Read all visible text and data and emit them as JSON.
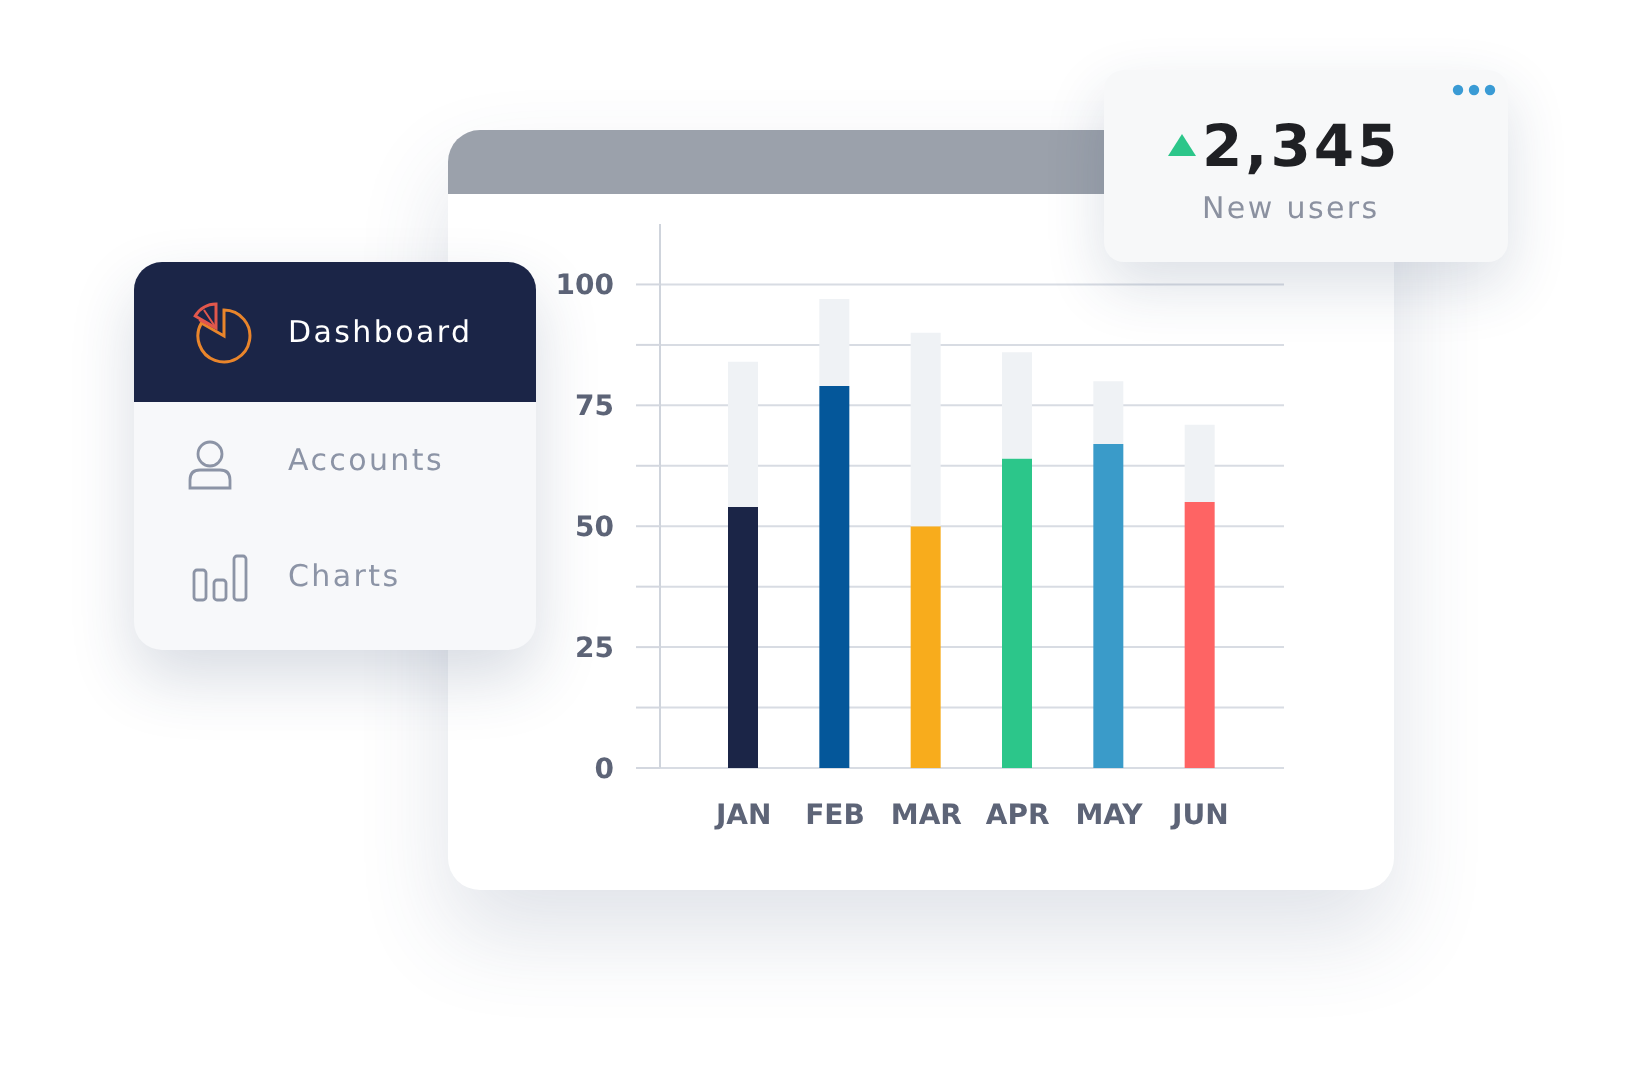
{
  "chart_data": [
    {
      "type": "bar",
      "stacked": true,
      "categories": [
        "JAN",
        "FEB",
        "MAR",
        "APR",
        "MAY",
        "JUN"
      ],
      "series": [
        {
          "colors": [
            "#1b2547",
            "#04579a",
            "#f8ac1c",
            "#2cc68a",
            "#3a9bc9",
            "#fe6464"
          ],
          "values": [
            54,
            79,
            50,
            64,
            67,
            55
          ]
        },
        {
          "color": "#eff2f5",
          "values": [
            30,
            18,
            40,
            22,
            13,
            16
          ]
        }
      ],
      "ylim": [
        0,
        112.5
      ],
      "yticks": [
        0,
        {
          "value": 12.5,
          "label": null
        },
        25,
        {
          "value": 37.5,
          "label": null
        },
        50,
        {
          "value": 62.5,
          "label": null
        },
        75,
        {
          "value": 87.5,
          "label": null
        },
        100
      ],
      "grid": "y"
    },
    {
      "type": "other",
      "annotations": [
        "Dashboard",
        "Accounts",
        "Charts"
      ]
    },
    {
      "type": "other",
      "annotations": [
        "2,345",
        "New users"
      ]
    }
  ]
}
